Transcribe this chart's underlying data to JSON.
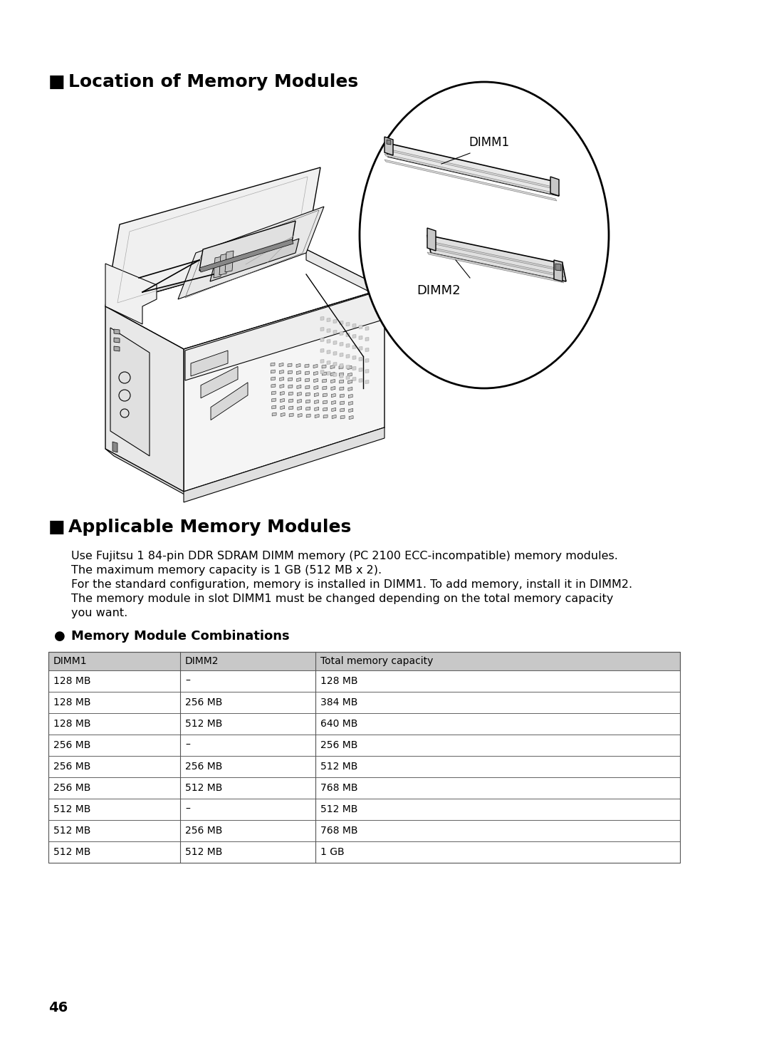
{
  "section1_title": "Location of Memory Modules",
  "section2_title": "Applicable Memory Modules",
  "subsection_title": "Memory Module Combinations",
  "bullet_symbol": "■",
  "circle_bullet": "●",
  "paragraph1": "Use Fujitsu 1 84-pin DDR SDRAM DIMM memory (PC 2100 ECC-incompatible) memory modules.",
  "paragraph2": "The maximum memory capacity is 1 GB (512 MB x 2).",
  "paragraph3": "For the standard configuration, memory is installed in DIMM1. To add memory, install it in DIMM2.",
  "paragraph4": "The memory module in slot DIMM1 must be changed depending on the total memory capacity",
  "paragraph4b": "you want.",
  "table_header": [
    "DIMM1",
    "DIMM2",
    "Total memory capacity"
  ],
  "table_rows": [
    [
      "128 MB",
      "–",
      "128 MB"
    ],
    [
      "128 MB",
      "256 MB",
      "384 MB"
    ],
    [
      "128 MB",
      "512 MB",
      "640 MB"
    ],
    [
      "256 MB",
      "–",
      "256 MB"
    ],
    [
      "256 MB",
      "256 MB",
      "512 MB"
    ],
    [
      "256 MB",
      "512 MB",
      "768 MB"
    ],
    [
      "512 MB",
      "–",
      "512 MB"
    ],
    [
      "512 MB",
      "256 MB",
      "768 MB"
    ],
    [
      "512 MB",
      "512 MB",
      "1 GB"
    ]
  ],
  "page_number": "46",
  "dimm1_label": "DIMM1",
  "dimm2_label": "DIMM2",
  "bg_color": "#ffffff",
  "text_color": "#000000",
  "table_header_bg": "#c8c8c8",
  "table_row_bg": "#ffffff",
  "table_border_color": "#555555"
}
